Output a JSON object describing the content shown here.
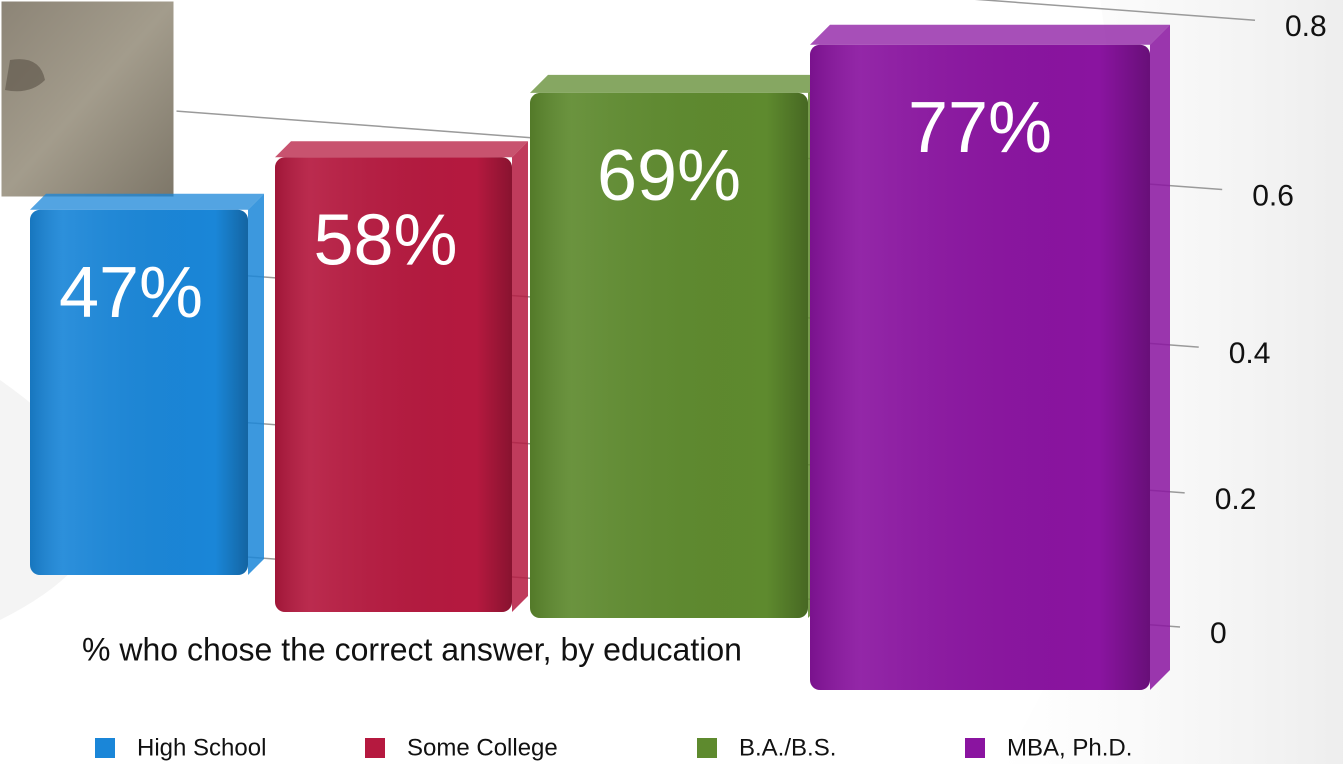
{
  "chart_data": {
    "type": "bar3d",
    "title": "% who chose the correct answer, by education",
    "ylim": [
      0,
      0.8
    ],
    "yticks": [
      0,
      0.2,
      0.4,
      0.6,
      0.8
    ],
    "grid": true,
    "legend": "bottom",
    "series": [
      {
        "name": "High School",
        "color": "#1a86d8",
        "values": [
          0.47
        ],
        "value_labels": [
          "47%"
        ]
      },
      {
        "name": "Some College",
        "color": "#b5193f",
        "values": [
          0.58
        ],
        "value_labels": [
          "58%"
        ]
      },
      {
        "name": "B.A./B.S.",
        "color": "#5e8a2e",
        "values": [
          0.69
        ],
        "value_labels": [
          "69%"
        ]
      },
      {
        "name": "MBA, Ph.D.",
        "color": "#8a14a0",
        "values": [
          0.77
        ],
        "value_labels": [
          "77%"
        ]
      }
    ]
  }
}
